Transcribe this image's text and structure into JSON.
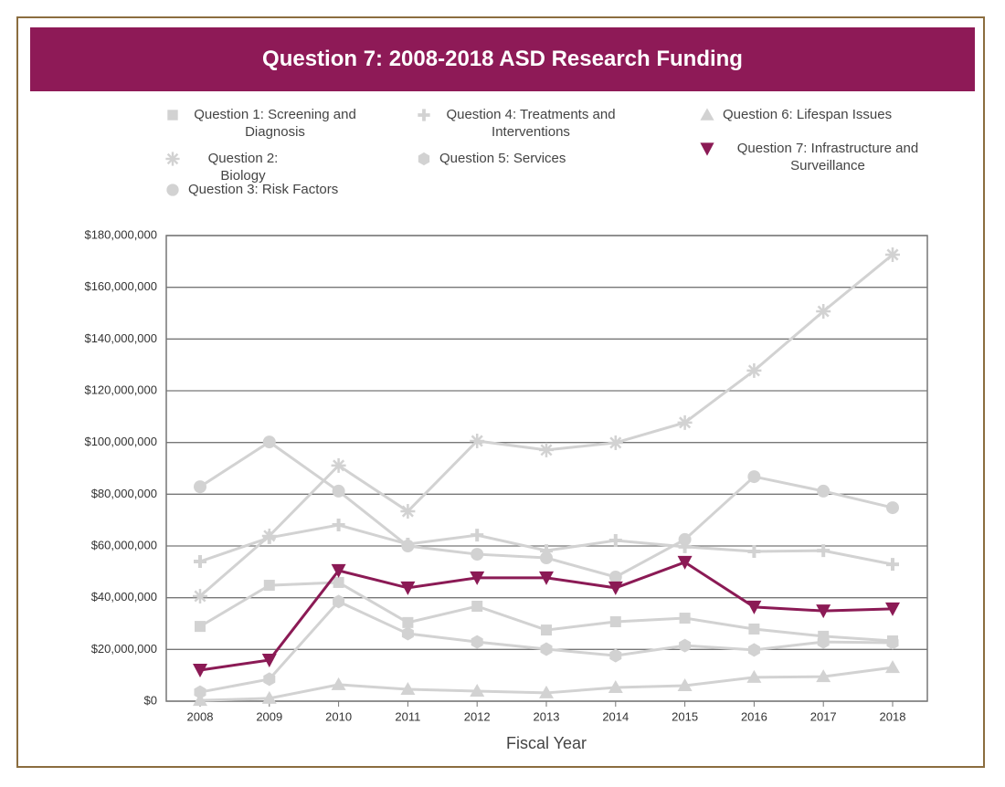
{
  "chart_data": {
    "type": "line",
    "title": "Question 7: 2008-2018 ASD Research Funding",
    "x_label": "Fiscal Year",
    "categories": [
      "2008",
      "2009",
      "2010",
      "2011",
      "2012",
      "2013",
      "2014",
      "2015",
      "2016",
      "2017",
      "2018"
    ],
    "ylim": [
      0,
      180000000
    ],
    "yticks": [
      {
        "value": 0,
        "label": "$0"
      },
      {
        "value": 20000000,
        "label": "$20,000,000"
      },
      {
        "value": 40000000,
        "label": "$40,000,000"
      },
      {
        "value": 60000000,
        "label": "$60,000,000"
      },
      {
        "value": 80000000,
        "label": "$80,000,000"
      },
      {
        "value": 100000000,
        "label": "$100,000,000"
      },
      {
        "value": 120000000,
        "label": "$120,000,000"
      },
      {
        "value": 140000000,
        "label": "$140,000,000"
      },
      {
        "value": 160000000,
        "label": "$160,000,000"
      },
      {
        "value": 180000000,
        "label": "$180,000,000"
      }
    ],
    "grid": true,
    "series": [
      {
        "name": "Question 1: Screening and Diagnosis",
        "color": "#d2d2d2",
        "marker": "square",
        "values": [
          28900000,
          44800000,
          45900000,
          30400000,
          36700000,
          27500000,
          30700000,
          32100000,
          27900000,
          25100000,
          23300000
        ]
      },
      {
        "name": "Question 2: Biology",
        "color": "#d2d2d2",
        "marker": "asterisk",
        "values": [
          40600000,
          63900000,
          91100000,
          73400000,
          100600000,
          97100000,
          99900000,
          107700000,
          127800000,
          150700000,
          172600000
        ]
      },
      {
        "name": "Question 3: Risk Factors",
        "color": "#d2d2d2",
        "marker": "circle",
        "values": [
          82900000,
          100200000,
          81200000,
          60000000,
          56800000,
          55400000,
          48000000,
          62500000,
          86800000,
          81200000,
          74800000
        ]
      },
      {
        "name": "Question 4: Treatments and Interventions",
        "color": "#d2d2d2",
        "marker": "plus",
        "values": [
          54000000,
          63200000,
          68100000,
          60700000,
          64200000,
          58200000,
          62100000,
          59700000,
          57900000,
          58200000,
          52900000
        ]
      },
      {
        "name": "Question 5: Services",
        "color": "#d2d2d2",
        "marker": "hexagon",
        "values": [
          3500000,
          8500000,
          38500000,
          26100000,
          22900000,
          20100000,
          17600000,
          21500000,
          19800000,
          22900000,
          22600000
        ]
      },
      {
        "name": "Question 6: Lifespan Issues",
        "color": "#d2d2d2",
        "marker": "triangle",
        "values": [
          300000,
          1100000,
          6400000,
          4600000,
          3900000,
          3200000,
          5300000,
          6000000,
          9200000,
          9500000,
          13000000
        ]
      },
      {
        "name": "Question 7: Infrastructure and Surveillance",
        "color": "#8b1a55",
        "marker": "triangle-down",
        "values": [
          12000000,
          15900000,
          50500000,
          43800000,
          47700000,
          47700000,
          43800000,
          53700000,
          36400000,
          34900000,
          35700000
        ]
      }
    ]
  }
}
